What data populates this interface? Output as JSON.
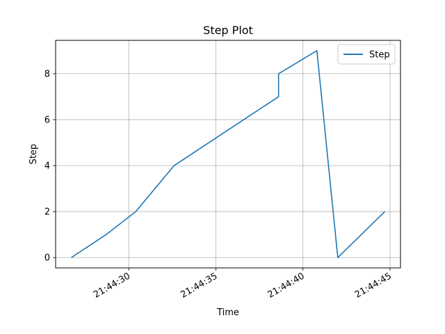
{
  "chart_data": {
    "type": "line",
    "title": "Step Plot",
    "xlabel": "Time",
    "ylabel": "Step",
    "x_format": "HH:MM:SS",
    "grid": true,
    "legend_placement": "top-right",
    "xlim": [
      "21:44:25.8",
      "21:44:45.6"
    ],
    "ylim": [
      -0.45,
      9.45
    ],
    "x_ticks": [
      "21:44:30",
      "21:44:35",
      "21:44:40",
      "21:44:45"
    ],
    "y_ticks": [
      0,
      2,
      4,
      6,
      8
    ],
    "series": [
      {
        "name": "Step",
        "color": "#1f77b4",
        "points": [
          {
            "x": "21:44:26.7",
            "y": 0
          },
          {
            "x": "21:44:28.7",
            "y": 1
          },
          {
            "x": "21:44:30.4",
            "y": 2
          },
          {
            "x": "21:44:31.5",
            "y": 3
          },
          {
            "x": "21:44:32.6",
            "y": 4
          },
          {
            "x": "21:44:34.6",
            "y": 5
          },
          {
            "x": "21:44:36.6",
            "y": 6
          },
          {
            "x": "21:44:38.6",
            "y": 7
          },
          {
            "x": "21:44:38.6",
            "y": 8
          },
          {
            "x": "21:44:40.8",
            "y": 9
          },
          {
            "x": "21:44:42.0",
            "y": 0
          },
          {
            "x": "21:44:44.7",
            "y": 2
          }
        ]
      }
    ]
  }
}
